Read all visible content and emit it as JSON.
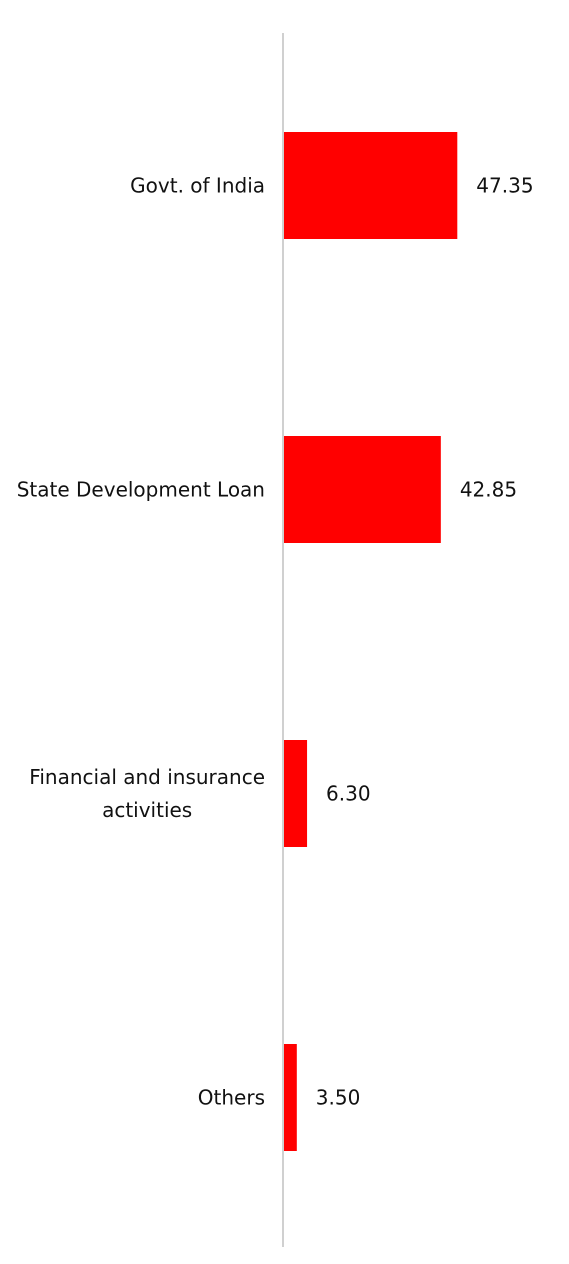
{
  "chart_data": {
    "type": "bar",
    "orientation": "horizontal",
    "categories": [
      "Govt. of India",
      "State Development Loan",
      "Financial and insurance activities",
      "Others"
    ],
    "category_label_lines": [
      [
        "Govt. of India"
      ],
      [
        "State Development Loan"
      ],
      [
        "Financial and insurance",
        "activities"
      ],
      [
        "Others"
      ]
    ],
    "values": [
      47.35,
      42.85,
      6.3,
      3.5
    ],
    "value_labels": [
      "47.35",
      "42.85",
      "6.30",
      "3.50"
    ],
    "xlim": [
      0,
      50
    ],
    "grid": false,
    "legend": "none",
    "colors": {
      "bar": "#ff0000",
      "axis": "#d0d0d0",
      "text": "#111111"
    }
  }
}
